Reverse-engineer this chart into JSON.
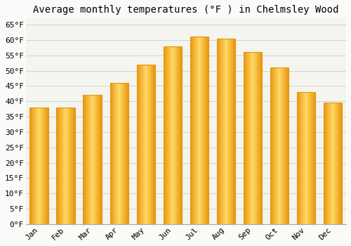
{
  "title": "Average monthly temperatures (°F ) in Chelmsley Wood",
  "months": [
    "Jan",
    "Feb",
    "Mar",
    "Apr",
    "May",
    "Jun",
    "Jul",
    "Aug",
    "Sep",
    "Oct",
    "Nov",
    "Dec"
  ],
  "values": [
    38,
    38,
    42,
    46,
    52,
    58,
    61,
    60.5,
    56,
    51,
    43,
    39.5
  ],
  "bar_color_center": "#FFD966",
  "bar_color_edge": "#E8960C",
  "background_color": "#FAFAF8",
  "plot_bg_color": "#F5F5F0",
  "ylim": [
    0,
    67
  ],
  "yticks": [
    0,
    5,
    10,
    15,
    20,
    25,
    30,
    35,
    40,
    45,
    50,
    55,
    60,
    65
  ],
  "ytick_labels": [
    "0°F",
    "5°F",
    "10°F",
    "15°F",
    "20°F",
    "25°F",
    "30°F",
    "35°F",
    "40°F",
    "45°F",
    "50°F",
    "55°F",
    "60°F",
    "65°F"
  ],
  "title_fontsize": 10,
  "tick_fontsize": 8,
  "grid_color": "#CCCCCC",
  "font_family": "monospace",
  "bar_width": 0.7
}
